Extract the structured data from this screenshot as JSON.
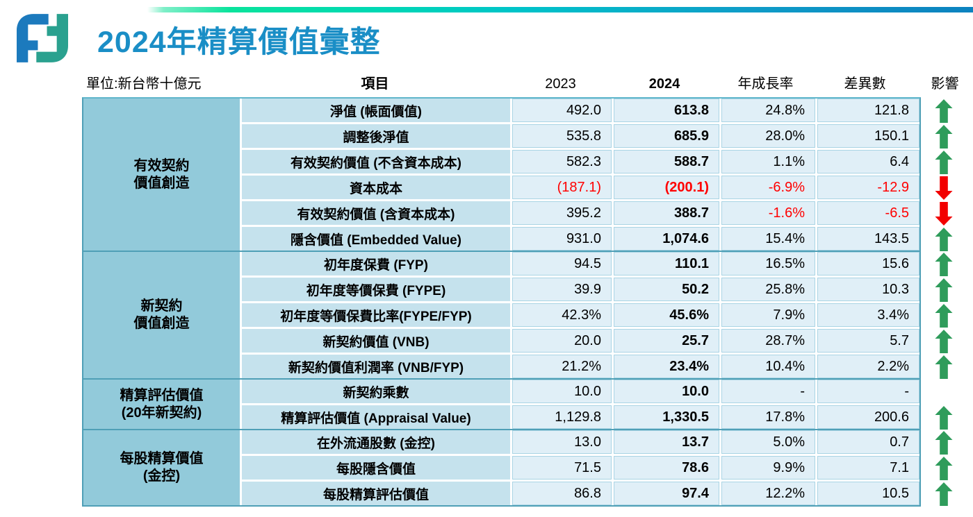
{
  "title": "2024年精算價值彙整",
  "logo": {
    "name": "fubon-logo",
    "blue": "#1C7ABD",
    "teal": "#2AA18F"
  },
  "header": {
    "unit_label": "單位:新台幣十億元",
    "columns": {
      "item": "項目",
      "y2023": "2023",
      "y2024": "2024",
      "growth": "年成長率",
      "diff": "差異數",
      "impact": "影響"
    }
  },
  "table": {
    "groups": [
      {
        "label": "有效契約\n價值創造",
        "rows": [
          {
            "item": "淨值 (帳面價值)",
            "v2023": "492.0",
            "v2024": "613.8",
            "growth": "24.8%",
            "diff": "121.8",
            "impact": "up",
            "neg_values": false,
            "neg_change": false
          },
          {
            "item": "調整後淨值",
            "v2023": "535.8",
            "v2024": "685.9",
            "growth": "28.0%",
            "diff": "150.1",
            "impact": "up",
            "neg_values": false,
            "neg_change": false
          },
          {
            "item": "有效契約價值 (不含資本成本)",
            "v2023": "582.3",
            "v2024": "588.7",
            "growth": "1.1%",
            "diff": "6.4",
            "impact": "up",
            "neg_values": false,
            "neg_change": false
          },
          {
            "item": "資本成本",
            "v2023": "(187.1)",
            "v2024": "(200.1)",
            "growth": "-6.9%",
            "diff": "-12.9",
            "impact": "down",
            "neg_values": true,
            "neg_change": true
          },
          {
            "item": "有效契約價值 (含資本成本)",
            "v2023": "395.2",
            "v2024": "388.7",
            "growth": "-1.6%",
            "diff": "-6.5",
            "impact": "down",
            "neg_values": false,
            "neg_change": true
          },
          {
            "item": "隱含價值 (Embedded Value)",
            "v2023": "931.0",
            "v2024": "1,074.6",
            "growth": "15.4%",
            "diff": "143.5",
            "impact": "up",
            "neg_values": false,
            "neg_change": false
          }
        ]
      },
      {
        "label": "新契約\n價值創造",
        "rows": [
          {
            "item": "初年度保費 (FYP)",
            "v2023": "94.5",
            "v2024": "110.1",
            "growth": "16.5%",
            "diff": "15.6",
            "impact": "up",
            "neg_values": false,
            "neg_change": false
          },
          {
            "item": "初年度等價保費 (FYPE)",
            "v2023": "39.9",
            "v2024": "50.2",
            "growth": "25.8%",
            "diff": "10.3",
            "impact": "up",
            "neg_values": false,
            "neg_change": false
          },
          {
            "item": "初年度等價保費比率(FYPE/FYP)",
            "v2023": "42.3%",
            "v2024": "45.6%",
            "growth": "7.9%",
            "diff": "3.4%",
            "impact": "up",
            "neg_values": false,
            "neg_change": false
          },
          {
            "item": "新契約價值 (VNB)",
            "v2023": "20.0",
            "v2024": "25.7",
            "growth": "28.7%",
            "diff": "5.7",
            "impact": "up",
            "neg_values": false,
            "neg_change": false
          },
          {
            "item": "新契約價值利潤率 (VNB/FYP)",
            "v2023": "21.2%",
            "v2024": "23.4%",
            "growth": "10.4%",
            "diff": "2.2%",
            "impact": "up",
            "neg_values": false,
            "neg_change": false
          }
        ]
      },
      {
        "label": "精算評估價值\n(20年新契約)",
        "rows": [
          {
            "item": "新契約乘數",
            "v2023": "10.0",
            "v2024": "10.0",
            "growth": "-",
            "diff": "-",
            "impact": "none",
            "neg_values": false,
            "neg_change": false
          },
          {
            "item": "精算評估價值 (Appraisal Value)",
            "v2023": "1,129.8",
            "v2024": "1,330.5",
            "growth": "17.8%",
            "diff": "200.6",
            "impact": "up",
            "neg_values": false,
            "neg_change": false
          }
        ]
      },
      {
        "label": "每股精算價值\n(金控)",
        "rows": [
          {
            "item": "在外流通股數 (金控)",
            "v2023": "13.0",
            "v2024": "13.7",
            "growth": "5.0%",
            "diff": "0.7",
            "impact": "up",
            "neg_values": false,
            "neg_change": false
          },
          {
            "item": "每股隱含價值",
            "v2023": "71.5",
            "v2024": "78.6",
            "growth": "9.9%",
            "diff": "7.1",
            "impact": "up",
            "neg_values": false,
            "neg_change": false
          },
          {
            "item": "每股精算評估價值",
            "v2023": "86.8",
            "v2024": "97.4",
            "growth": "12.2%",
            "diff": "10.5",
            "impact": "up",
            "neg_values": false,
            "neg_change": false
          }
        ]
      }
    ]
  },
  "colors": {
    "title_text": "#1A8EC6",
    "group_cell_bg": "#92CADA",
    "item_cell_bg": "#C5E2ED",
    "value_cell_bg": "#E0EFF7",
    "value_cell_border": "#A9D4E4",
    "table_border": "#4F9FB6",
    "arrow_up_green": "#2F9C5B",
    "arrow_down_red": "#F20000",
    "negative_text_red": "#FF0000",
    "top_bar_gradient": [
      "#0AE39C",
      "#00C3C9",
      "#0C82BF"
    ]
  }
}
